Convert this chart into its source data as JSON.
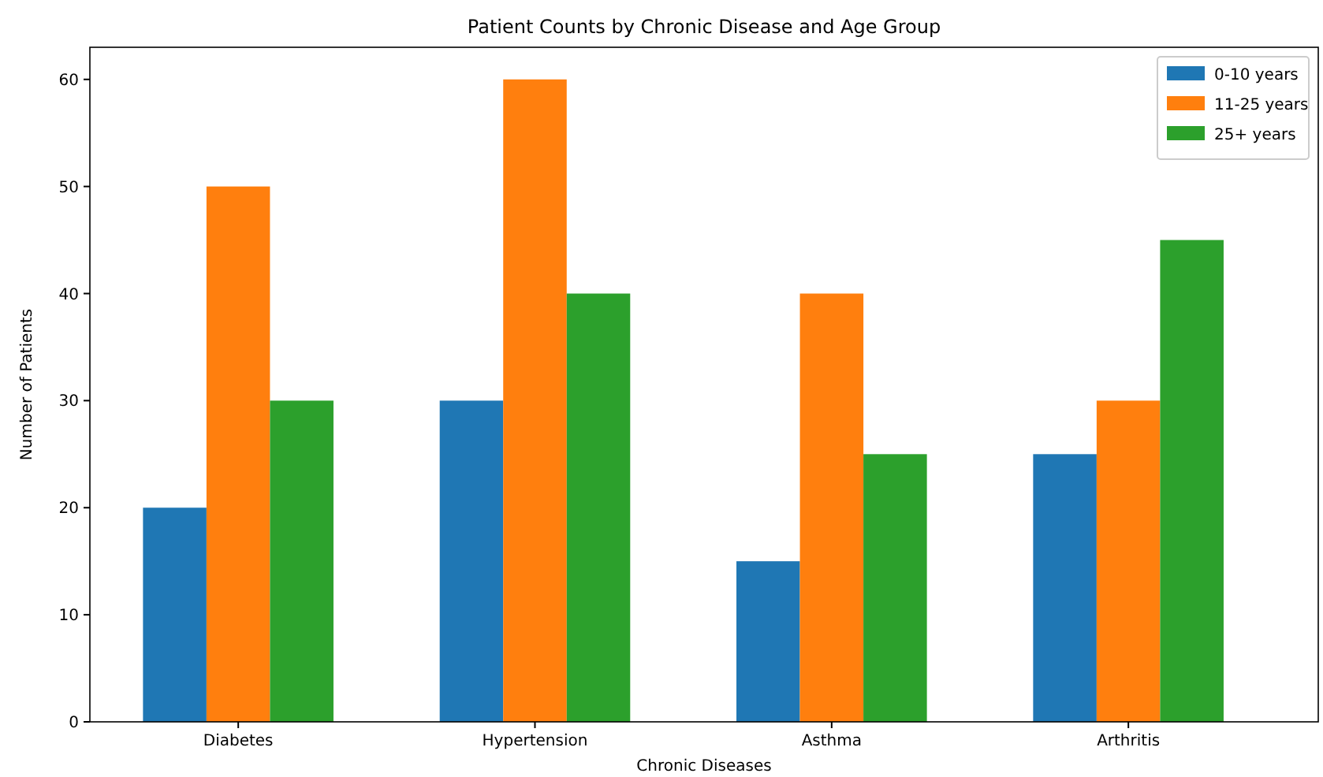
{
  "chart_data": {
    "type": "bar",
    "title": "Patient Counts by Chronic Disease and Age Group",
    "xlabel": "Chronic Diseases",
    "ylabel": "Number of Patients",
    "categories": [
      "Diabetes",
      "Hypertension",
      "Asthma",
      "Arthritis"
    ],
    "series": [
      {
        "name": "0-10 years",
        "color": "#1f77b4",
        "values": [
          20,
          30,
          15,
          25
        ]
      },
      {
        "name": "11-25 years",
        "color": "#ff7f0e",
        "values": [
          50,
          60,
          40,
          30
        ]
      },
      {
        "name": "25+ years",
        "color": "#2ca02c",
        "values": [
          30,
          40,
          25,
          45
        ]
      }
    ],
    "ylim": [
      0,
      63
    ],
    "yticks": [
      0,
      10,
      20,
      30,
      40,
      50,
      60
    ],
    "grid": false,
    "legend": "top right"
  }
}
